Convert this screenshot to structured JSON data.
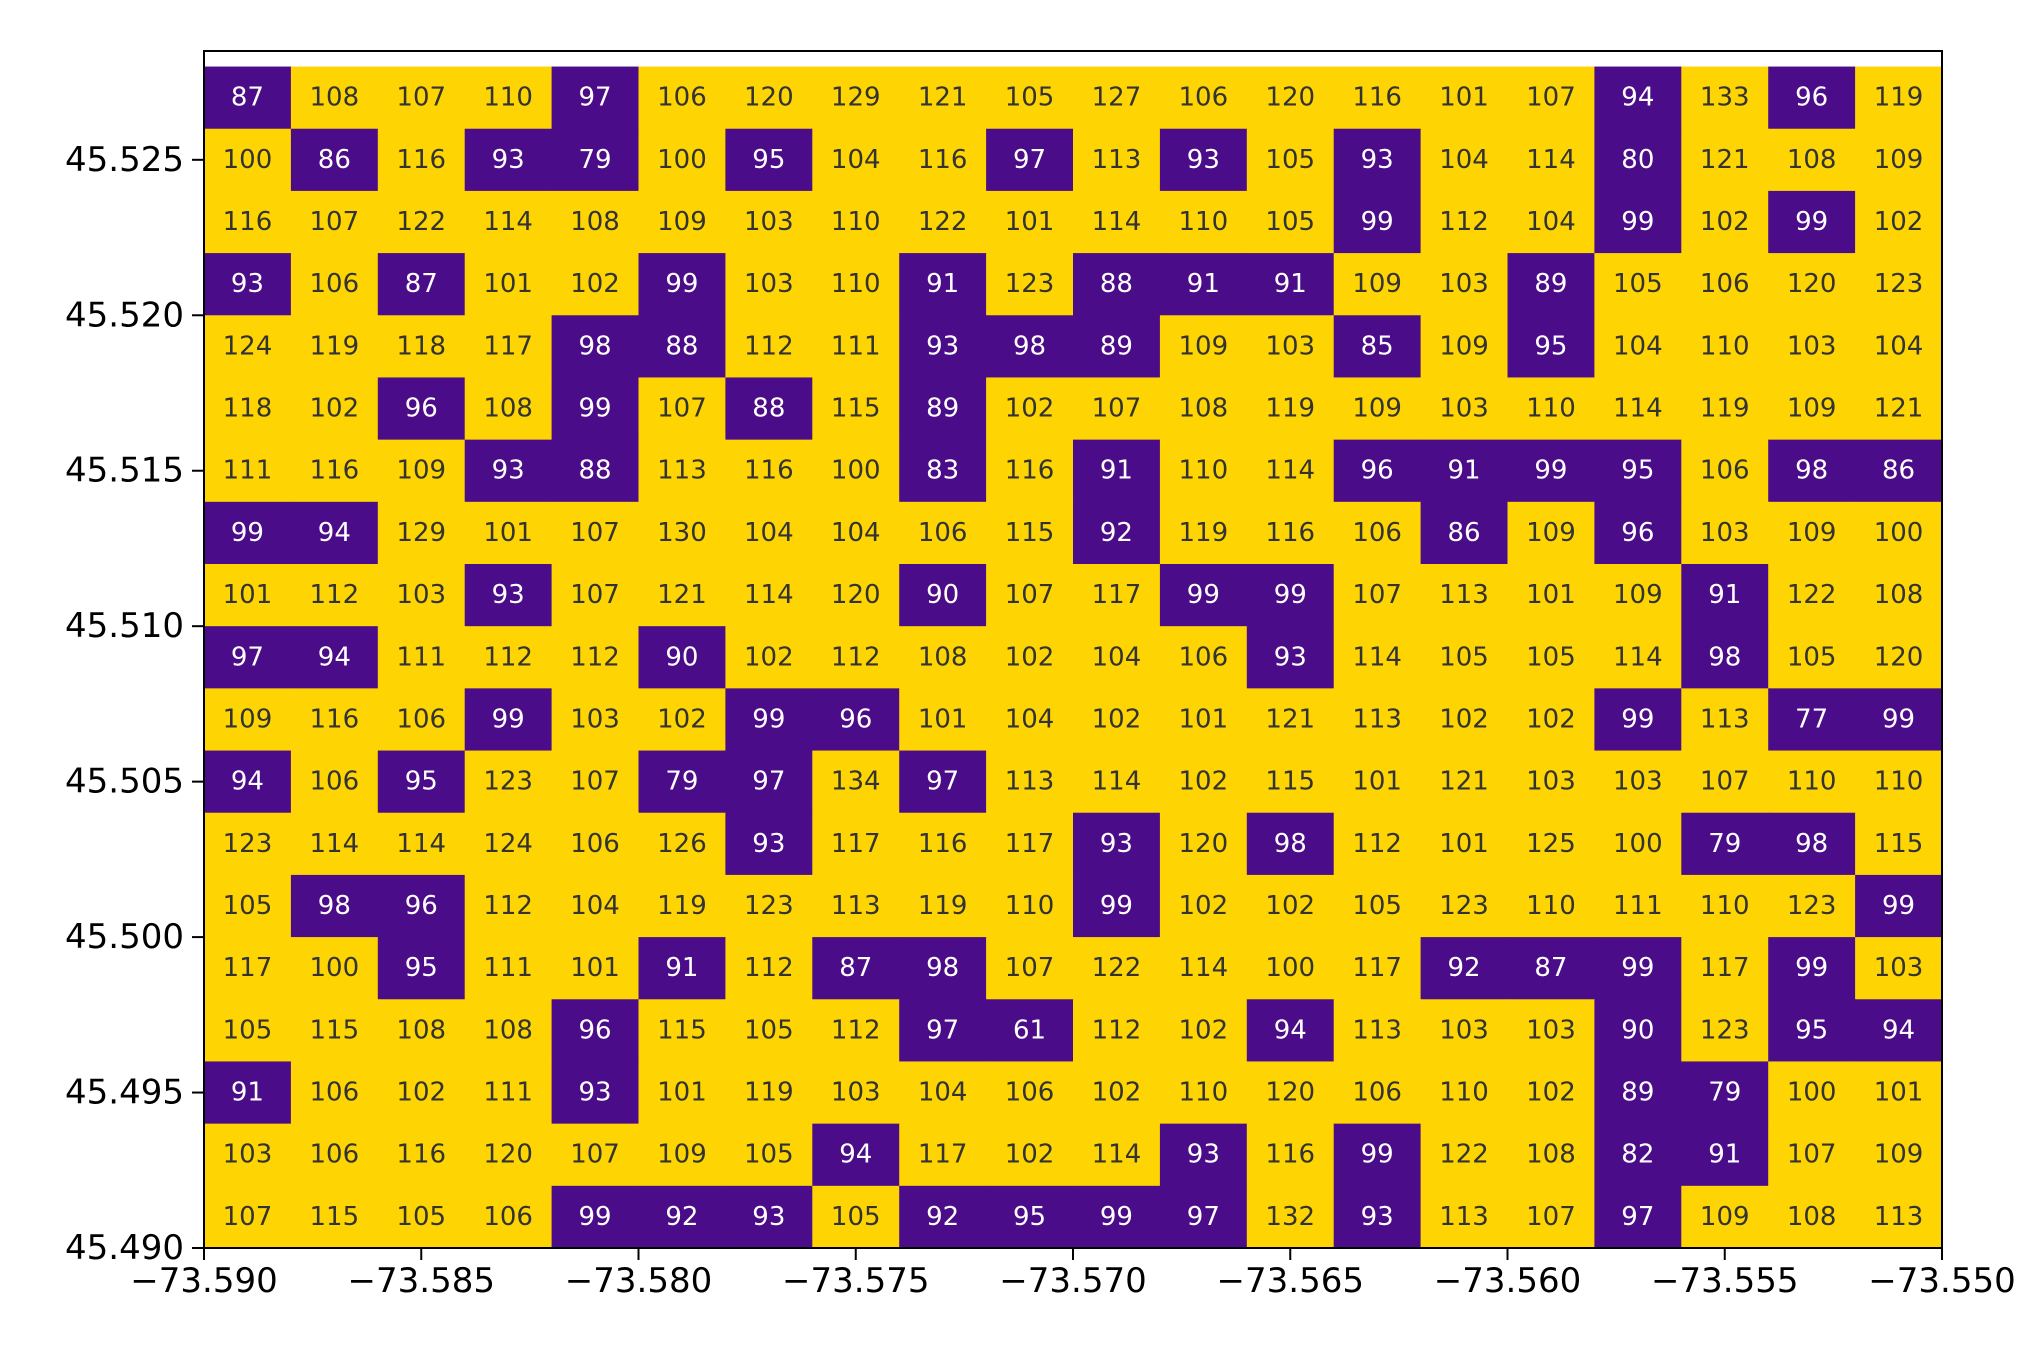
{
  "chart_data": {
    "type": "heatmap",
    "title": "",
    "xlabel": "",
    "ylabel": "",
    "xlim": [
      -73.59,
      -73.55
    ],
    "ylim": [
      45.49,
      45.5285
    ],
    "x_ticks": [
      -73.59,
      -73.585,
      -73.58,
      -73.575,
      -73.57,
      -73.565,
      -73.56,
      -73.555,
      -73.55
    ],
    "x_tick_labels": [
      "−73.590",
      "−73.585",
      "−73.580",
      "−73.575",
      "−73.570",
      "−73.565",
      "−73.560",
      "−73.555",
      "−73.550"
    ],
    "y_ticks": [
      45.49,
      45.495,
      45.5,
      45.505,
      45.51,
      45.515,
      45.52,
      45.525
    ],
    "y_tick_labels": [
      "45.490",
      "45.495",
      "45.500",
      "45.505",
      "45.510",
      "45.515",
      "45.520",
      "45.525"
    ],
    "grid": false,
    "threshold": 100,
    "colors": {
      "below_threshold": "#4b0c89",
      "at_or_above_threshold": "#fed502",
      "label_on_dark": "#ffffff",
      "label_on_light": "#333333"
    },
    "rows_top_to_bottom": [
      [
        87,
        108,
        107,
        110,
        97,
        106,
        120,
        129,
        121,
        105,
        127,
        106,
        120,
        116,
        101,
        107,
        94,
        133,
        96,
        119
      ],
      [
        100,
        86,
        116,
        93,
        79,
        100,
        95,
        104,
        116,
        97,
        113,
        93,
        105,
        93,
        104,
        114,
        80,
        121,
        108,
        109
      ],
      [
        116,
        107,
        122,
        114,
        108,
        109,
        103,
        110,
        122,
        101,
        114,
        110,
        105,
        99,
        112,
        104,
        99,
        102,
        99,
        102
      ],
      [
        93,
        106,
        87,
        101,
        102,
        99,
        103,
        110,
        91,
        123,
        88,
        91,
        91,
        109,
        103,
        89,
        105,
        106,
        120,
        123
      ],
      [
        124,
        119,
        118,
        117,
        98,
        88,
        112,
        111,
        93,
        98,
        89,
        109,
        103,
        85,
        109,
        95,
        104,
        110,
        103,
        104
      ],
      [
        118,
        102,
        96,
        108,
        99,
        107,
        88,
        115,
        89,
        102,
        107,
        108,
        119,
        109,
        103,
        110,
        114,
        119,
        109,
        121
      ],
      [
        111,
        116,
        109,
        93,
        88,
        113,
        116,
        100,
        83,
        116,
        91,
        110,
        114,
        96,
        91,
        99,
        95,
        106,
        98,
        86
      ],
      [
        99,
        94,
        129,
        101,
        107,
        130,
        104,
        104,
        106,
        115,
        92,
        119,
        116,
        106,
        86,
        109,
        96,
        103,
        109,
        100
      ],
      [
        101,
        112,
        103,
        93,
        107,
        121,
        114,
        120,
        90,
        107,
        117,
        99,
        99,
        107,
        113,
        101,
        109,
        91,
        122,
        108
      ],
      [
        97,
        94,
        111,
        112,
        112,
        90,
        102,
        112,
        108,
        102,
        104,
        106,
        93,
        114,
        105,
        105,
        114,
        98,
        105,
        120
      ],
      [
        109,
        116,
        106,
        99,
        103,
        102,
        99,
        96,
        101,
        104,
        102,
        101,
        121,
        113,
        102,
        102,
        99,
        113,
        77,
        99
      ],
      [
        94,
        106,
        95,
        123,
        107,
        79,
        97,
        134,
        97,
        113,
        114,
        102,
        115,
        101,
        121,
        103,
        103,
        107,
        110,
        110
      ],
      [
        123,
        114,
        114,
        124,
        106,
        126,
        93,
        117,
        116,
        117,
        93,
        120,
        98,
        112,
        101,
        125,
        100,
        79,
        98,
        115
      ],
      [
        105,
        98,
        96,
        112,
        104,
        119,
        123,
        113,
        119,
        110,
        99,
        102,
        102,
        105,
        123,
        110,
        111,
        110,
        123,
        99
      ],
      [
        117,
        100,
        95,
        111,
        101,
        91,
        112,
        87,
        98,
        107,
        122,
        114,
        100,
        117,
        92,
        87,
        99,
        117,
        99,
        103
      ],
      [
        105,
        115,
        108,
        108,
        96,
        115,
        105,
        112,
        97,
        61,
        112,
        102,
        94,
        113,
        103,
        103,
        90,
        123,
        95,
        94
      ],
      [
        91,
        106,
        102,
        111,
        93,
        101,
        119,
        103,
        104,
        106,
        102,
        110,
        120,
        106,
        110,
        102,
        89,
        79,
        100,
        101
      ],
      [
        103,
        106,
        116,
        120,
        107,
        109,
        105,
        94,
        117,
        102,
        114,
        93,
        116,
        99,
        122,
        108,
        82,
        91,
        107,
        109
      ],
      [
        107,
        115,
        105,
        106,
        99,
        92,
        93,
        105,
        92,
        95,
        99,
        97,
        132,
        93,
        113,
        107,
        97,
        109,
        108,
        113
      ]
    ]
  }
}
